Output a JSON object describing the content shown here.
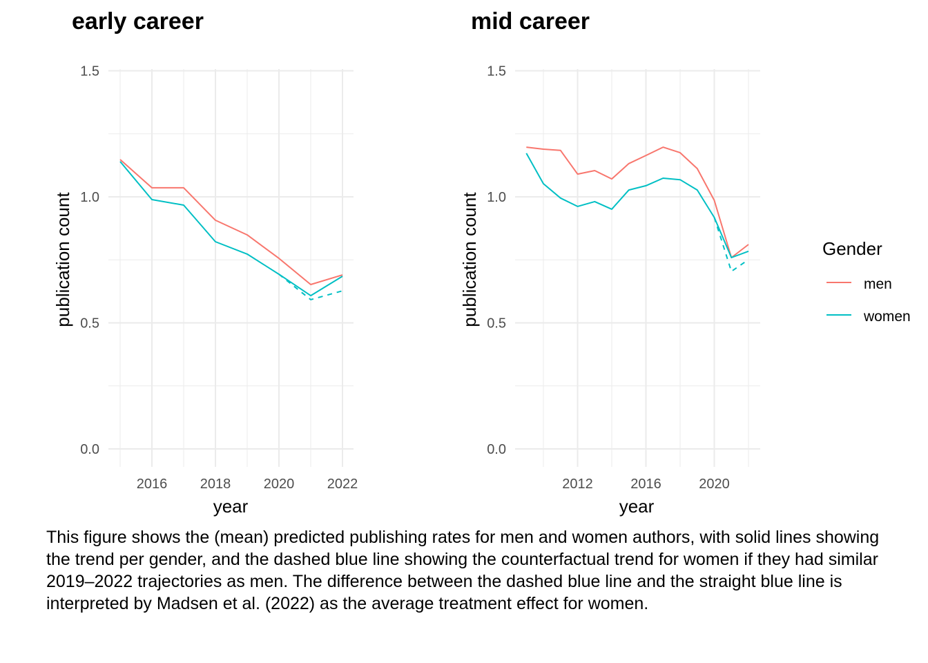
{
  "chart_data": [
    {
      "type": "line",
      "title": "early career",
      "xlabel": "year",
      "ylabel": "publication count",
      "xlim": [
        2015,
        2022
      ],
      "ylim": [
        0.0,
        1.5
      ],
      "x_ticks": [
        2016,
        2018,
        2020,
        2022
      ],
      "x_minor": [
        2015,
        2017,
        2019,
        2021
      ],
      "y_ticks": [
        "0.0",
        "0.5",
        "1.0",
        "1.5"
      ],
      "y_tick_values": [
        0.0,
        0.5,
        1.0,
        1.5
      ],
      "grid": true,
      "series": [
        {
          "name": "men",
          "color": "#F8766D",
          "dashed": false,
          "x": [
            2015,
            2016,
            2017,
            2018,
            2019,
            2020,
            2021,
            2022
          ],
          "values": [
            1.148,
            1.036,
            1.036,
            0.907,
            0.849,
            0.756,
            0.652,
            0.69
          ]
        },
        {
          "name": "women",
          "color": "#00BFC4",
          "dashed": false,
          "x": [
            2015,
            2016,
            2017,
            2018,
            2019,
            2020,
            2021,
            2022
          ],
          "values": [
            1.14,
            0.989,
            0.967,
            0.822,
            0.773,
            0.693,
            0.608,
            0.685
          ]
        },
        {
          "name": "women (counterfactual)",
          "color": "#00BFC4",
          "dashed": true,
          "x": [
            2020,
            2021,
            2022
          ],
          "values": [
            0.693,
            0.592,
            0.627
          ]
        }
      ]
    },
    {
      "type": "line",
      "title": "mid career",
      "xlabel": "year",
      "ylabel": "publication count",
      "xlim": [
        2009,
        2022
      ],
      "ylim": [
        0.0,
        1.5
      ],
      "x_ticks": [
        2012,
        2016,
        2020
      ],
      "x_minor": [
        2010,
        2014,
        2018,
        2022
      ],
      "y_ticks": [
        "0.0",
        "0.5",
        "1.0",
        "1.5"
      ],
      "y_tick_values": [
        0.0,
        0.5,
        1.0,
        1.5
      ],
      "grid": true,
      "series": [
        {
          "name": "men",
          "color": "#F8766D",
          "dashed": false,
          "x": [
            2009,
            2010,
            2011,
            2012,
            2013,
            2014,
            2015,
            2016,
            2017,
            2018,
            2019,
            2020,
            2021,
            2022
          ],
          "values": [
            1.197,
            1.189,
            1.184,
            1.09,
            1.104,
            1.071,
            1.132,
            1.164,
            1.197,
            1.175,
            1.112,
            0.986,
            0.759,
            0.811
          ]
        },
        {
          "name": "women",
          "color": "#00BFC4",
          "dashed": false,
          "x": [
            2009,
            2010,
            2011,
            2012,
            2013,
            2014,
            2015,
            2016,
            2017,
            2018,
            2019,
            2020,
            2021,
            2022
          ],
          "values": [
            1.173,
            1.052,
            0.995,
            0.962,
            0.981,
            0.951,
            1.027,
            1.044,
            1.074,
            1.068,
            1.027,
            0.918,
            0.759,
            0.784
          ]
        },
        {
          "name": "women (counterfactual)",
          "color": "#00BFC4",
          "dashed": true,
          "x": [
            2020,
            2021,
            2022
          ],
          "values": [
            0.918,
            0.704,
            0.751
          ]
        }
      ]
    }
  ],
  "legend": {
    "title": "Gender",
    "placement": "right",
    "items": [
      {
        "label": "men",
        "color": "#F8766D"
      },
      {
        "label": "women",
        "color": "#00BFC4"
      }
    ]
  },
  "caption": {
    "lines": [
      "This figure shows the (mean) predicted publishing rates for men and women authors, with solid lines showing",
      "the trend per gender, and the dashed blue line showing the counterfactual trend for women if they had similar",
      "2019–2022 trajectories as men. The difference between the dashed blue line and the straight blue line is",
      "interpreted by Madsen et al. (2022) as the average treatment effect for women."
    ]
  }
}
